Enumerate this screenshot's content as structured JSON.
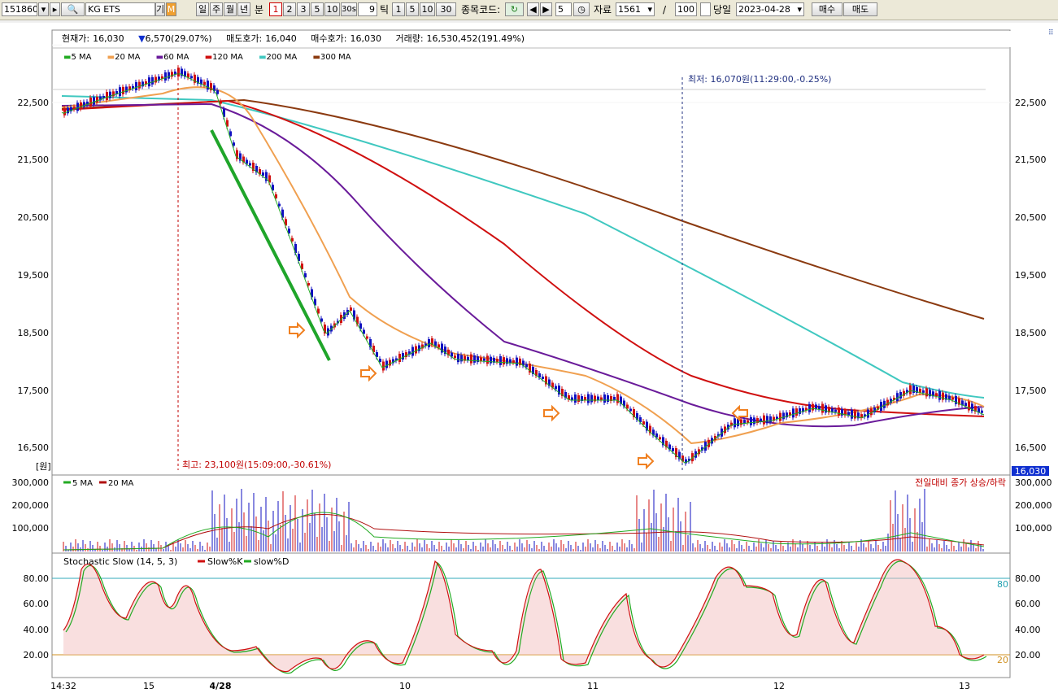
{
  "toolbar": {
    "code": "151860",
    "name": "KG ETS",
    "gi": "기",
    "m": "M",
    "periods": [
      "일",
      "주",
      "월",
      "년",
      "분"
    ],
    "minutes": [
      "1",
      "2",
      "3",
      "5",
      "10",
      "30s"
    ],
    "tick_value": "9",
    "tick_label": "틱",
    "tick_buttons": [
      "1",
      "5",
      "10",
      "30"
    ],
    "code_label": "종목코드:",
    "step_value": "5",
    "data_label": "자료",
    "data_count": "1561",
    "slash": "/",
    "page_size": "100",
    "today_label": "당일",
    "date": "2023-04-28",
    "buy_label": "매수",
    "sell_label": "매도"
  },
  "ticker": {
    "current_label": "현재가:",
    "current": "16,030",
    "change_arrow": "▼",
    "change": "6,570(29.07%)",
    "ask_label": "매도호가:",
    "ask": "16,040",
    "bid_label": "매수호가:",
    "bid": "16,030",
    "volume_label": "거래량:",
    "volume": "16,530,452(191.49%)"
  },
  "ma_legend": [
    {
      "label": "5 MA",
      "color": "#22aa22"
    },
    {
      "label": "20 MA",
      "color": "#f0a050"
    },
    {
      "label": "60 MA",
      "color": "#6a1b9a"
    },
    {
      "label": "120 MA",
      "color": "#d01010"
    },
    {
      "label": "200 MA",
      "color": "#40c8c0"
    },
    {
      "label": "300 MA",
      "color": "#8b3a10"
    }
  ],
  "price_axis": [
    "22,500",
    "21,500",
    "20,500",
    "19,500",
    "18,500",
    "17,500",
    "16,500"
  ],
  "unit_label": "[원]",
  "annot_low": "최저: 16,070원(11:29:00,-0.25%)",
  "annot_high": "최고: 23,100원(15:09:00,-30.61%)",
  "last_price_tag": "16,030",
  "volume_legend": [
    {
      "label": "5 MA",
      "color": "#22aa22"
    },
    {
      "label": "20 MA",
      "color": "#b01010"
    }
  ],
  "volume_axis": [
    "300,000",
    "200,000",
    "100,000"
  ],
  "volume_note": "전일대비 종가 상승/하락",
  "stoch_title": "Stochastic Slow (14, 5, 3)",
  "stoch_legend": [
    {
      "label": "Slow%K",
      "color": "#d01010"
    },
    {
      "label": "slow%D",
      "color": "#22aa22"
    }
  ],
  "stoch_axis": [
    "80.00",
    "60.00",
    "40.00",
    "20.00"
  ],
  "stoch_marker_80": "80",
  "stoch_marker_20": "20",
  "time_axis": [
    "14:32",
    "15",
    "4/28",
    "10",
    "11",
    "12",
    "13"
  ],
  "colors": {
    "up": "#d01010",
    "down": "#1010c0",
    "accent": "#f08020"
  }
}
